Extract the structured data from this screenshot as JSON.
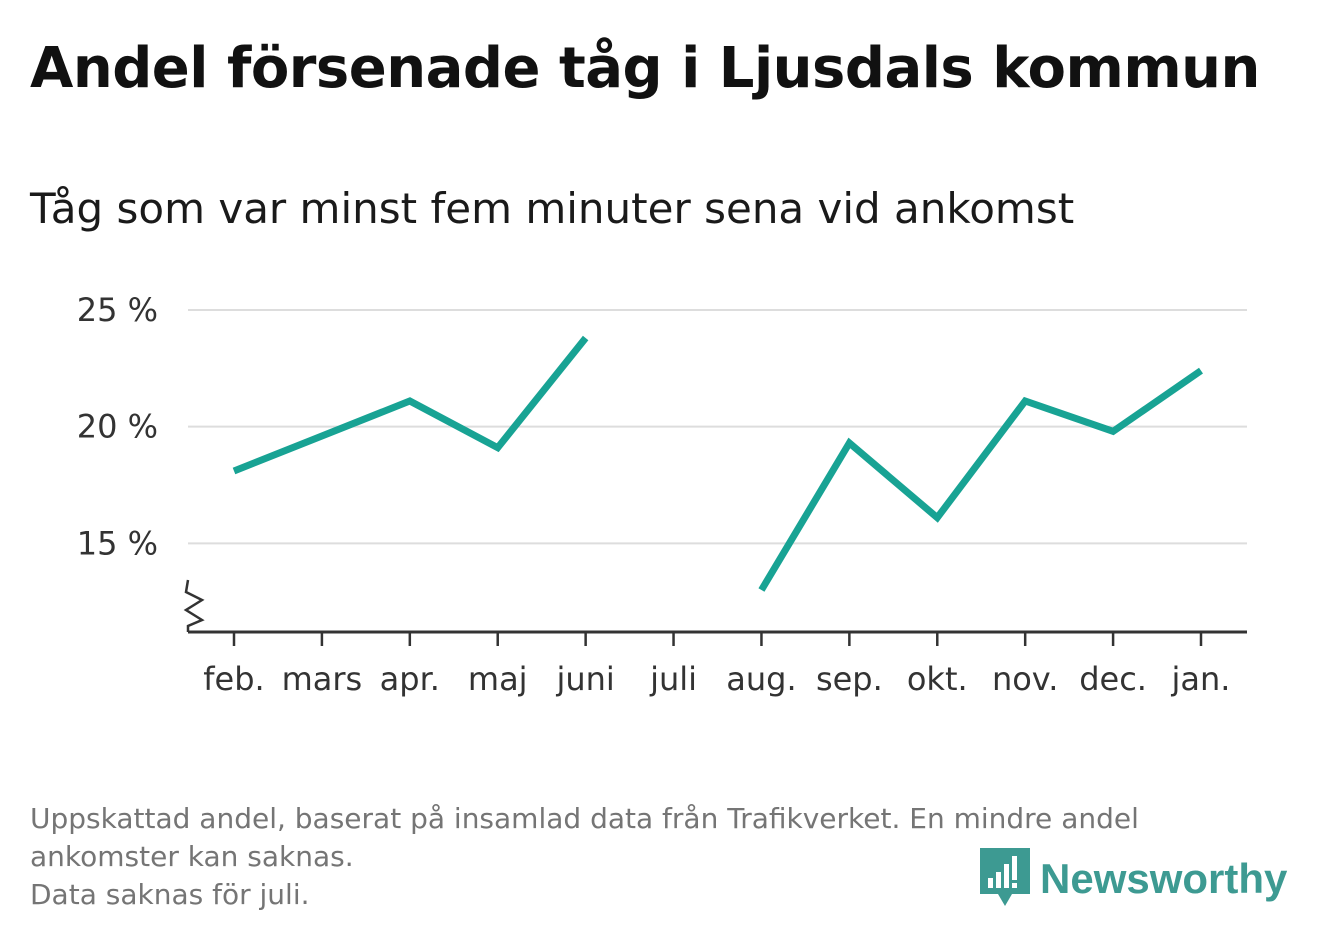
{
  "colors": {
    "line": "#18a394",
    "grid": "#dddddd",
    "axis": "#333333",
    "note": "#757575",
    "brand": "#3d9a92"
  },
  "header": {
    "title": "Andel försenade tåg i Ljusdals kommun",
    "subtitle": "Tåg som var minst fem minuter sena vid ankomst"
  },
  "chart_data": {
    "type": "line",
    "categories": [
      "feb.",
      "mars",
      "apr.",
      "maj",
      "juni",
      "juli",
      "aug.",
      "sep.",
      "okt.",
      "nov.",
      "dec.",
      "jan."
    ],
    "series": [
      {
        "values": [
          18.1,
          19.6,
          21.1,
          19.1,
          23.8,
          null,
          13.0,
          19.3,
          16.1,
          21.1,
          19.8,
          22.4
        ]
      }
    ],
    "yticks": [
      15,
      20,
      25
    ],
    "ytick_labels": [
      "15 %",
      "20 %",
      "25 %"
    ],
    "ylim": [
      11.2,
      25
    ],
    "y_axis_break": true,
    "grid": true,
    "legend": "none"
  },
  "footer": {
    "note_lines": [
      "Uppskattad andel, baserat på insamlad data från Trafikverket. En mindre andel",
      "ankomster kan saknas.",
      "Data saknas för juli."
    ],
    "brand": "Newsworthy",
    "brand_icon": "newsworthy-logo-icon"
  }
}
